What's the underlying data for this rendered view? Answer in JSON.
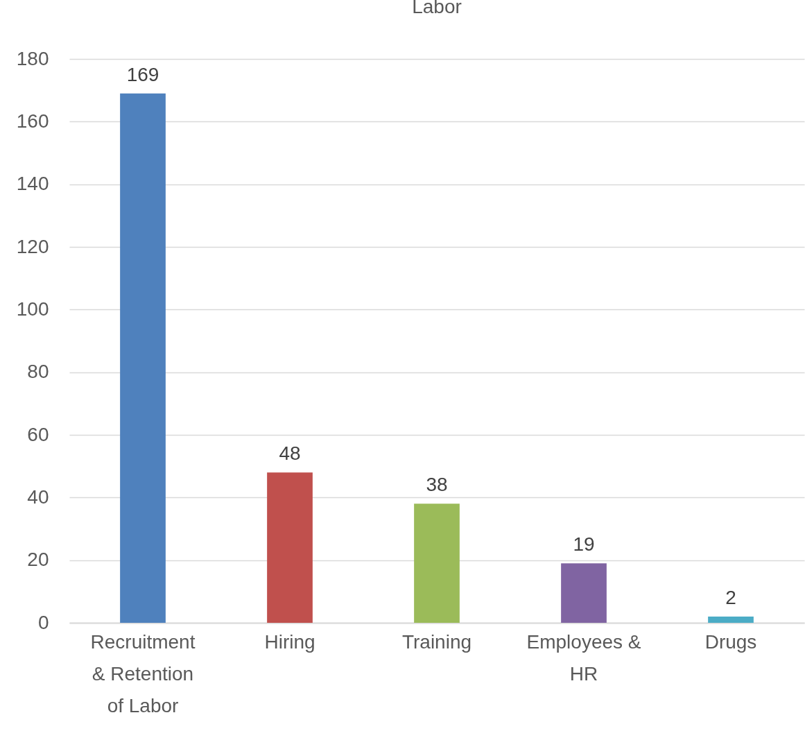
{
  "chart_data": {
    "type": "bar",
    "title": "Labor",
    "categories": [
      "Recruitment & Retention of Labor",
      "Hiring",
      "Training",
      "Employees & HR",
      "Drugs"
    ],
    "values": [
      169,
      48,
      38,
      19,
      2
    ],
    "colors": [
      "#4f81bd",
      "#c0504d",
      "#9bbb59",
      "#8064a2",
      "#4bacc6"
    ],
    "ylim": [
      0,
      180
    ],
    "yticks": [
      0,
      20,
      40,
      60,
      80,
      100,
      120,
      140,
      160,
      180
    ],
    "grid": "y",
    "data_labels": true
  }
}
